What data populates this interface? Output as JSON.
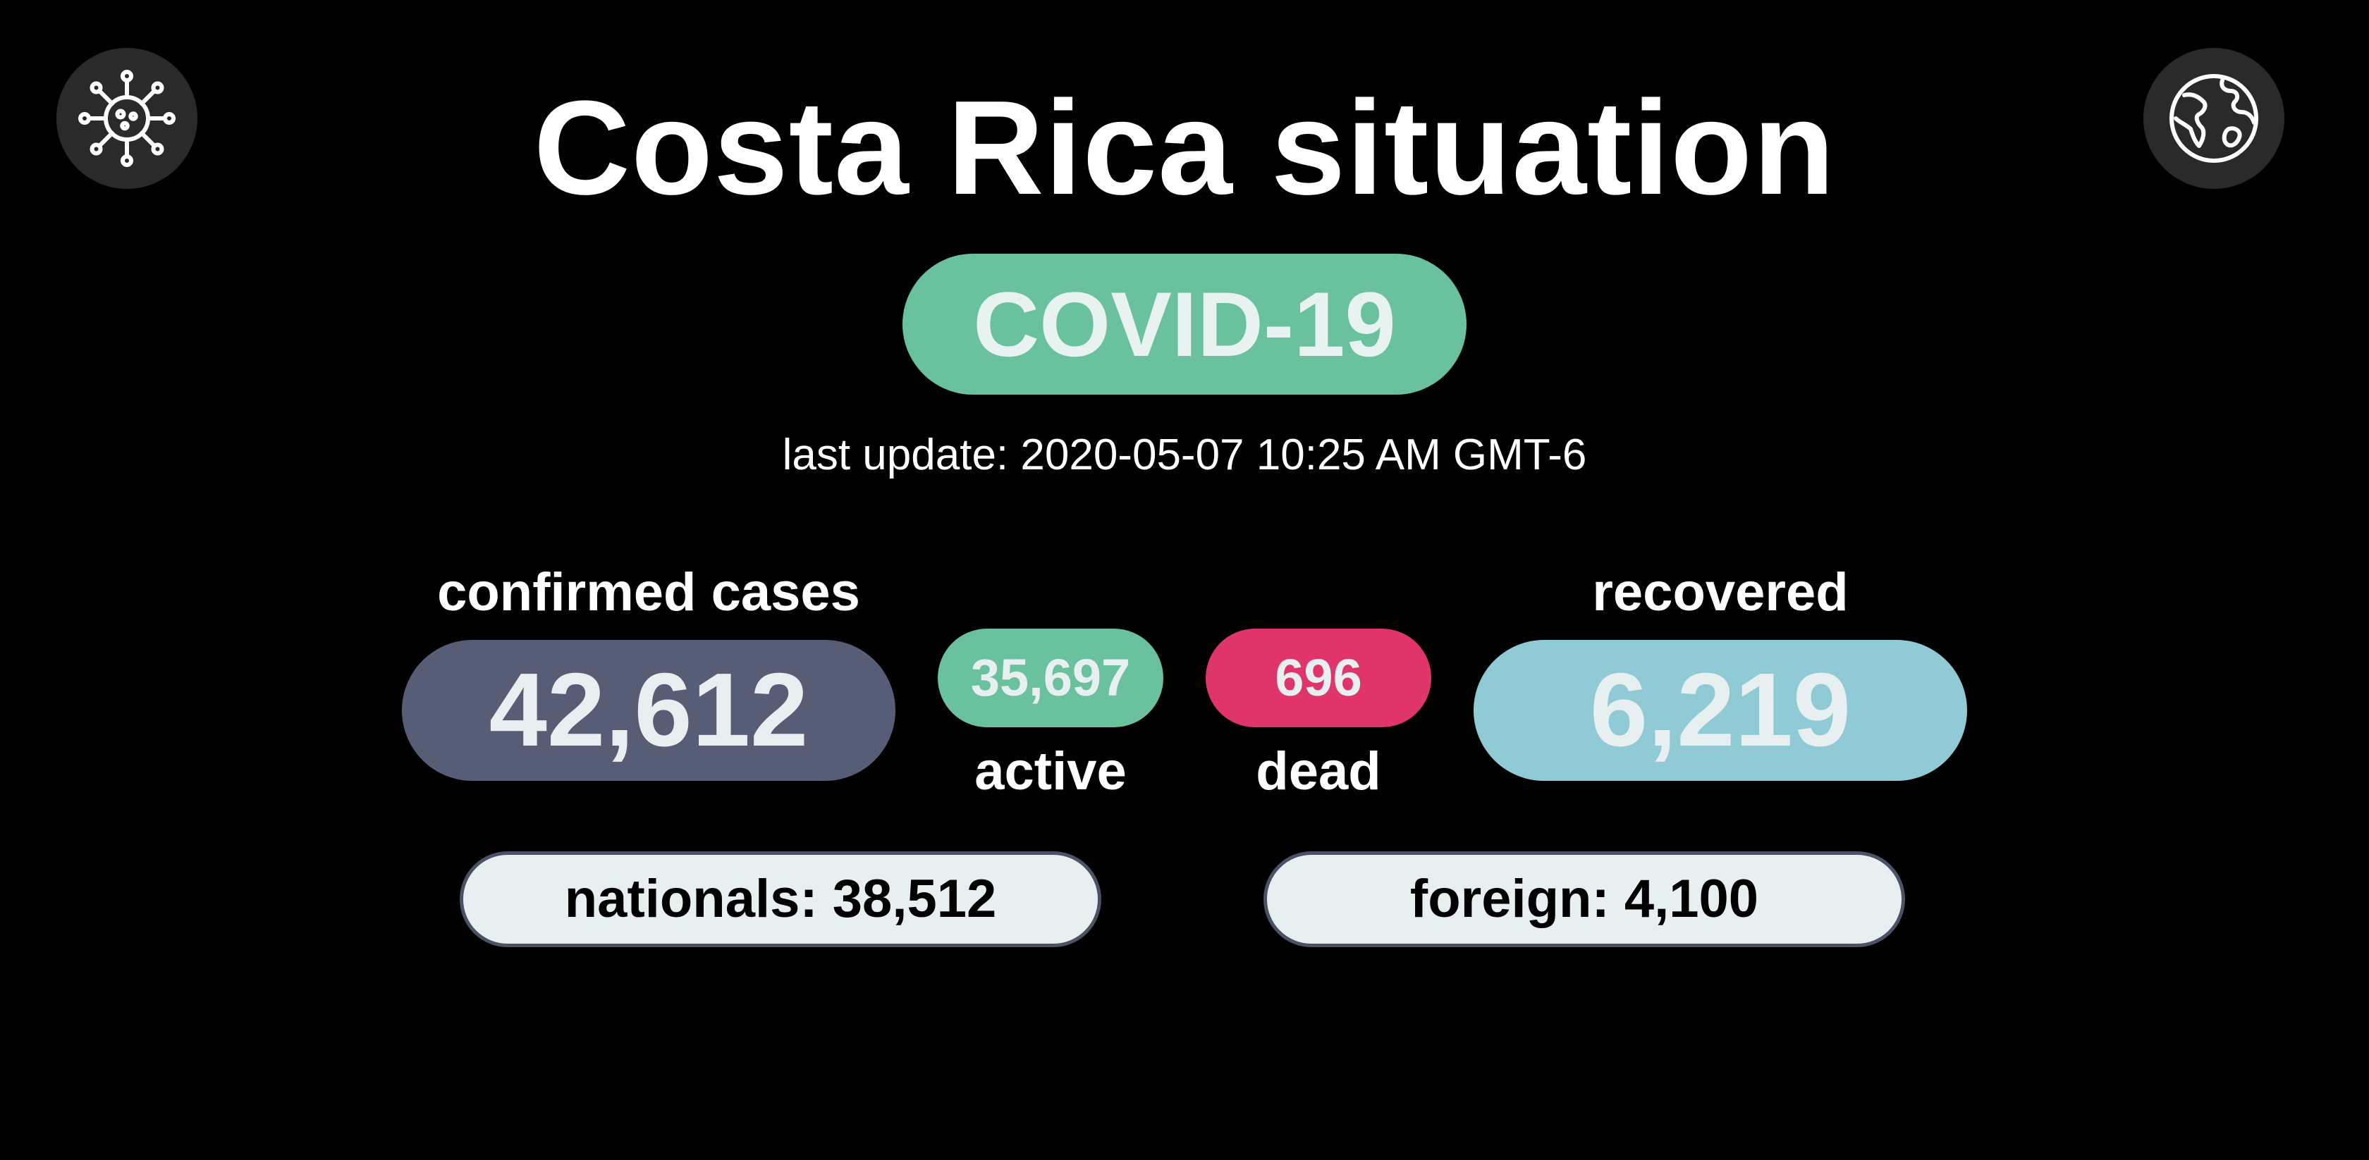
{
  "header": {
    "title": "Costa Rica situation",
    "badge": "COVID-19",
    "last_update": "last update: 2020-05-07 10:25 AM GMT-6"
  },
  "icons": {
    "left": "virus-icon",
    "right": "globe-icon"
  },
  "stats": {
    "confirmed": {
      "label": "confirmed cases",
      "value": "42,612",
      "color": "#575d75"
    },
    "active": {
      "label": "active",
      "value": "35,697",
      "color": "#6ac19e"
    },
    "dead": {
      "label": "dead",
      "value": "696",
      "color": "#e0356a"
    },
    "recovered": {
      "label": "recovered",
      "value": "6,219",
      "color": "#8fcad5"
    }
  },
  "breakdown": {
    "nationals": "nationals: 38,512",
    "foreign": "foreign: 4,100"
  },
  "colors": {
    "background": "#000000",
    "badge": "#6ac19e",
    "pill_light": "#e8eff1"
  }
}
